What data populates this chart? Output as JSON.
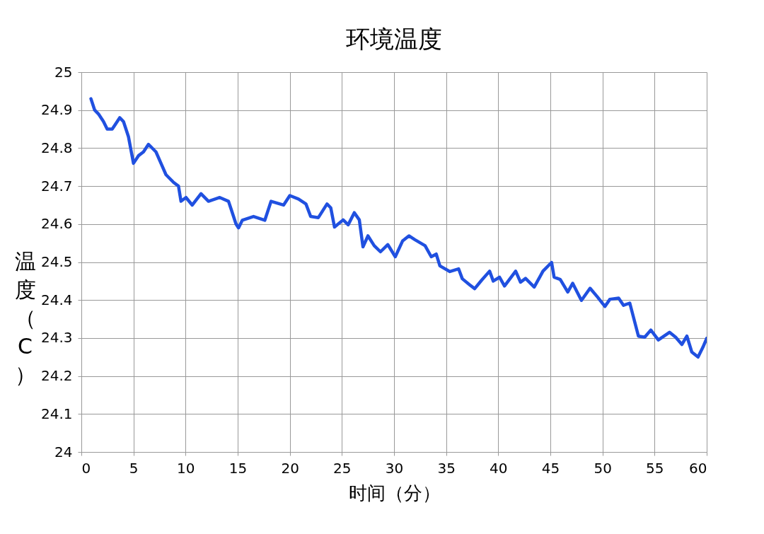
{
  "chart_data": {
    "type": "line",
    "title": "环境温度",
    "xlabel": "时间（分）",
    "ylabel": "温度（C）",
    "xlim": [
      0,
      60
    ],
    "xticks": [
      0,
      5,
      10,
      15,
      20,
      25,
      30,
      35,
      40,
      45,
      50,
      55,
      60
    ],
    "ylim": [
      24,
      25
    ],
    "yticks": [
      24,
      24.1,
      24.2,
      24.3,
      24.4,
      24.5,
      24.6,
      24.7,
      24.8,
      24.9,
      25
    ],
    "grid": true,
    "marker": "none",
    "line_style": "solid",
    "series": [
      {
        "color": "#2050e0",
        "x": [
          0.92,
          1.28,
          1.64,
          2.12,
          2.48,
          2.96,
          3.2,
          3.68,
          4.04,
          4.52,
          5.0,
          5.48,
          5.96,
          6.44,
          7.16,
          7.64,
          8.12,
          8.84,
          9.32,
          9.56,
          10.04,
          10.64,
          11.48,
          12.2,
          13.28,
          14.12,
          14.36,
          14.84,
          15.08,
          15.44,
          16.52,
          17.6,
          18.2,
          19.4,
          20.0,
          20.83,
          21.55,
          22.0,
          22.74,
          23.57,
          23.93,
          24.29,
          25.12,
          25.6,
          26.19,
          26.67,
          27.02,
          27.5,
          28.1,
          28.7,
          29.4,
          30.12,
          30.83,
          31.43,
          32.0,
          32.98,
          33.57,
          34.05,
          34.4,
          35.36,
          36.2,
          36.55,
          37.26,
          37.74,
          38.4,
          39.17,
          39.52,
          40.12,
          40.6,
          41.67,
          42.14,
          42.62,
          43.45,
          44.29,
          45.12,
          45.36,
          45.95,
          46.67,
          47.14,
          47.98,
          48.81,
          49.52,
          50.24,
          50.71,
          51.55,
          52.02,
          52.62,
          53.45,
          54.05,
          54.64,
          55.36,
          56.43,
          57.02,
          57.62,
          58.1,
          58.57,
          59.17,
          59.64,
          60.0
        ],
        "values": [
          24.93,
          24.9,
          24.89,
          24.87,
          24.85,
          24.85,
          24.86,
          24.88,
          24.87,
          24.83,
          24.76,
          24.78,
          24.79,
          24.81,
          24.79,
          24.76,
          24.73,
          24.71,
          24.7,
          24.66,
          24.67,
          24.65,
          24.68,
          24.66,
          24.67,
          24.66,
          24.64,
          24.6,
          24.59,
          24.61,
          24.62,
          24.61,
          24.66,
          24.65,
          24.675,
          24.666,
          24.653,
          24.62,
          24.617,
          24.653,
          24.643,
          24.592,
          24.611,
          24.598,
          24.63,
          24.611,
          24.54,
          24.569,
          24.543,
          24.527,
          24.546,
          24.514,
          24.556,
          24.569,
          24.559,
          24.543,
          24.514,
          24.521,
          24.49,
          24.475,
          24.482,
          24.456,
          24.44,
          24.43,
          24.452,
          24.476,
          24.45,
          24.46,
          24.437,
          24.476,
          24.447,
          24.457,
          24.434,
          24.476,
          24.499,
          24.46,
          24.454,
          24.421,
          24.444,
          24.399,
          24.431,
          24.408,
          24.383,
          24.402,
          24.405,
          24.386,
          24.392,
          24.305,
          24.302,
          24.321,
          24.295,
          24.315,
          24.302,
          24.283,
          24.305,
          24.263,
          24.25,
          24.276,
          24.299
        ]
      }
    ]
  }
}
